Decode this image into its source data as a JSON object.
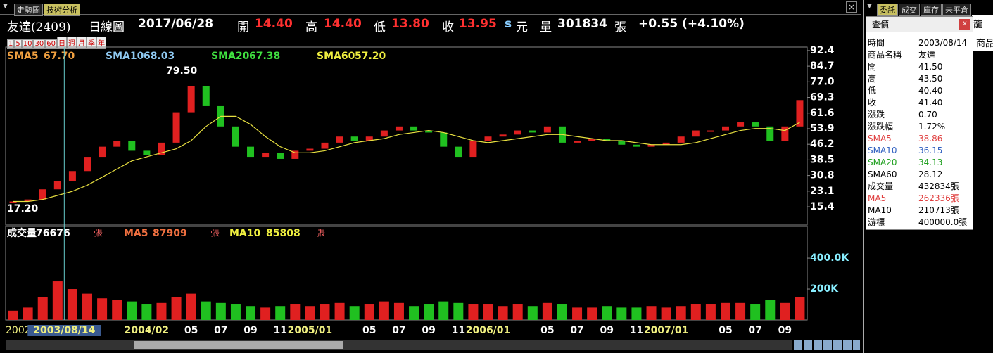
{
  "tabs": [
    "走勢圖",
    "技術分析"
  ],
  "header": {
    "stock": "友達(2409)",
    "period": "日線圖",
    "date": "2017/06/28",
    "open_label": "開",
    "open": "14.40",
    "high_label": "高",
    "high": "14.40",
    "low_label": "低",
    "low": "13.80",
    "close_label": "收",
    "close": "13.95",
    "unit_s": "s",
    "unit": "元",
    "vol_label": "量",
    "volume": "301834",
    "vol_unit": "張",
    "change": "+0.55 (+4.10%)"
  },
  "period_buttons": [
    "1",
    "5",
    "10",
    "30",
    "60",
    "日",
    "週",
    "月",
    "季",
    "年"
  ],
  "chart_data": [
    {
      "type": "candle",
      "legend": [
        {
          "name": "SMA5",
          "value": "67.70",
          "color": "#f0a040"
        },
        {
          "name": "SMA10",
          "value": "68.03",
          "color": "#8ec8f0"
        },
        {
          "name": "SMA20",
          "value": "67.38",
          "color": "#40e040"
        },
        {
          "name": "SMA60",
          "value": "57.20",
          "color": "#f0f040"
        }
      ],
      "high_label": "79.50",
      "low_label": "17.20",
      "cursor_label": "2003/08/14",
      "edge_label": "2002",
      "categories": [
        null,
        null,
        null,
        null,
        null,
        null,
        null,
        null,
        null,
        "2004/02",
        null,
        null,
        "05",
        null,
        "07",
        null,
        "09",
        null,
        "11",
        null,
        "2005/01",
        null,
        null,
        null,
        "05",
        null,
        "07",
        null,
        "09",
        null,
        "11",
        null,
        "2006/01",
        null,
        null,
        null,
        "05",
        null,
        "07",
        null,
        "09",
        null,
        "11",
        null,
        "2007/01",
        null,
        null,
        null,
        "05",
        null,
        "07",
        null,
        "09",
        null
      ],
      "series": [
        {
          "name": "收",
          "values": [
            18,
            19,
            24,
            28,
            33,
            40,
            45,
            48,
            43,
            41,
            47,
            62,
            75,
            65,
            55,
            45,
            40,
            42,
            39,
            43,
            44,
            47,
            50,
            48,
            50,
            53,
            55,
            53,
            52,
            45,
            40,
            48,
            50,
            51,
            53,
            52,
            55,
            47,
            48,
            49,
            48,
            46,
            45,
            46,
            47,
            50,
            53,
            53,
            55,
            57,
            55,
            48,
            55,
            68
          ]
        },
        {
          "name": "SMA60",
          "color": "#e8e040",
          "values": [
            18,
            18,
            19,
            21,
            23,
            26,
            30,
            34,
            38,
            40,
            42,
            44,
            48,
            55,
            60,
            60,
            56,
            50,
            45,
            42,
            42,
            43,
            45,
            47,
            48,
            49,
            51,
            52,
            53,
            52,
            50,
            48,
            47,
            48,
            49,
            50,
            51,
            51,
            50,
            49,
            48,
            48,
            47,
            46,
            46,
            46,
            47,
            49,
            51,
            53,
            54,
            54,
            53,
            57
          ]
        }
      ],
      "up_color": "#e02020",
      "down_color": "#20c020",
      "ylim": [
        6.4,
        94.1
      ],
      "yticks": [
        92.4,
        84.7,
        {
          "value": 77,
          "label": "77.0"
        },
        69.3,
        61.6,
        53.9,
        46.2,
        38.5,
        30.8,
        23.1,
        15.4
      ]
    },
    {
      "type": "bar",
      "legend": [
        {
          "name": "成交量",
          "value": "76676",
          "unit": "張",
          "color": "#ffffff"
        },
        {
          "name": "MA5",
          "value": "87909",
          "unit": "張",
          "color": "#f07040"
        },
        {
          "name": "MA10",
          "value": "85808",
          "unit": "張",
          "color": "#f0f040"
        }
      ],
      "values": [
        60000,
        80000,
        150000,
        250000,
        200000,
        170000,
        140000,
        130000,
        120000,
        100000,
        110000,
        150000,
        170000,
        120000,
        110000,
        100000,
        90000,
        80000,
        90000,
        100000,
        90000,
        100000,
        110000,
        90000,
        100000,
        120000,
        110000,
        90000,
        100000,
        120000,
        110000,
        100000,
        100000,
        90000,
        100000,
        90000,
        110000,
        100000,
        80000,
        80000,
        90000,
        80000,
        80000,
        90000,
        80000,
        90000,
        100000,
        100000,
        110000,
        110000,
        100000,
        130000,
        110000,
        150000
      ],
      "ylim": [
        0,
        605000
      ],
      "yticks": [
        {
          "value": 400000,
          "label": "400.0K"
        },
        {
          "value": 200000,
          "label": "200K"
        }
      ]
    }
  ],
  "right_tabs": [
    "委託",
    "成交",
    "庫存",
    "未平倉"
  ],
  "quote": {
    "title": "查價",
    "close": "x",
    "behind": [
      "龍",
      "商品"
    ],
    "rows": [
      [
        "時間",
        "2003/08/14"
      ],
      [
        "商品名稱",
        "友達"
      ],
      [
        "開",
        "41.50"
      ],
      [
        "高",
        "43.50"
      ],
      [
        "低",
        "40.40"
      ],
      [
        "收",
        "41.40"
      ],
      [
        "漲跌",
        "0.70"
      ],
      [
        "漲跌幅",
        "1.72%"
      ],
      [
        "SMA5",
        "38.86"
      ],
      [
        "SMA10",
        "36.15"
      ],
      [
        "SMA20",
        "34.13"
      ],
      [
        "SMA60",
        "28.12"
      ],
      [
        "成交量",
        "432834張"
      ],
      [
        "MA5",
        "262336張"
      ],
      [
        "MA10",
        "210713張"
      ],
      [
        "游標",
        "400000.0張"
      ]
    ]
  }
}
